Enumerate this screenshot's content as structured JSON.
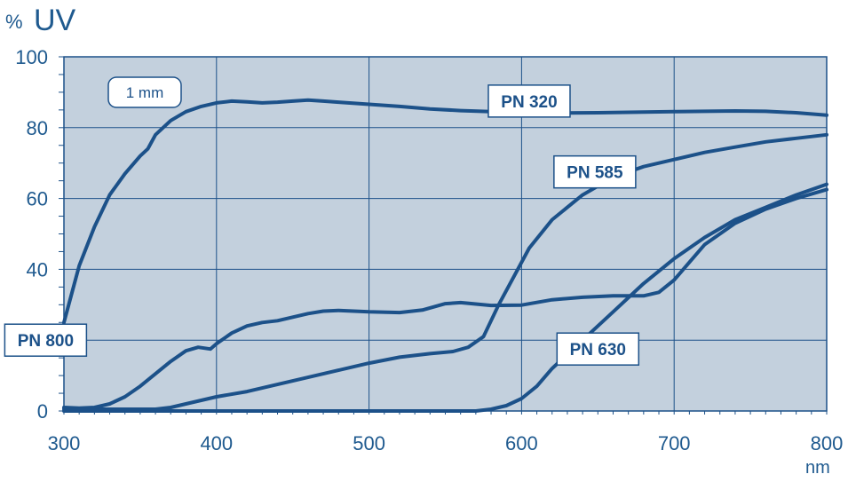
{
  "chart_data": {
    "type": "line",
    "ylabel_unit": "%",
    "ylabel": "UV",
    "xlabel": "nm",
    "xlim": [
      300,
      800
    ],
    "ylim": [
      0,
      100
    ],
    "x_ticks": [
      300,
      400,
      500,
      600,
      700,
      800
    ],
    "y_ticks": [
      0,
      20,
      40,
      60,
      80,
      100
    ],
    "grid": true,
    "annotation": "1 mm",
    "series": [
      {
        "name": "PN 320",
        "points": [
          [
            300,
            25
          ],
          [
            305,
            33
          ],
          [
            310,
            41
          ],
          [
            320,
            52
          ],
          [
            330,
            61
          ],
          [
            340,
            67
          ],
          [
            350,
            72
          ],
          [
            355,
            74
          ],
          [
            360,
            78
          ],
          [
            370,
            82
          ],
          [
            380,
            84.5
          ],
          [
            390,
            86
          ],
          [
            400,
            87
          ],
          [
            410,
            87.5
          ],
          [
            420,
            87.3
          ],
          [
            430,
            87
          ],
          [
            440,
            87.2
          ],
          [
            450,
            87.5
          ],
          [
            460,
            87.8
          ],
          [
            470,
            87.5
          ],
          [
            480,
            87.2
          ],
          [
            500,
            86.6
          ],
          [
            520,
            86
          ],
          [
            540,
            85.3
          ],
          [
            560,
            84.8
          ],
          [
            580,
            84.5
          ],
          [
            600,
            84.3
          ],
          [
            620,
            84.1
          ],
          [
            650,
            84.2
          ],
          [
            700,
            84.5
          ],
          [
            720,
            84.6
          ],
          [
            740,
            84.7
          ],
          [
            760,
            84.6
          ],
          [
            780,
            84.2
          ],
          [
            800,
            83.5
          ]
        ],
        "label_xy": [
          605,
          87.5
        ]
      },
      {
        "name": "PN 585",
        "points": [
          [
            300,
            0.5
          ],
          [
            350,
            0.5
          ],
          [
            360,
            0.5
          ],
          [
            370,
            1
          ],
          [
            380,
            2
          ],
          [
            400,
            4
          ],
          [
            420,
            5.5
          ],
          [
            440,
            7.5
          ],
          [
            460,
            9.5
          ],
          [
            480,
            11.5
          ],
          [
            500,
            13.5
          ],
          [
            520,
            15.2
          ],
          [
            540,
            16.2
          ],
          [
            555,
            16.8
          ],
          [
            565,
            18
          ],
          [
            575,
            21
          ],
          [
            585,
            30
          ],
          [
            595,
            38
          ],
          [
            605,
            46
          ],
          [
            620,
            54
          ],
          [
            640,
            61
          ],
          [
            660,
            66
          ],
          [
            680,
            69
          ],
          [
            700,
            71
          ],
          [
            720,
            73
          ],
          [
            740,
            74.5
          ],
          [
            760,
            76
          ],
          [
            780,
            77
          ],
          [
            800,
            78
          ]
        ],
        "label_xy": [
          648,
          67.5
        ]
      },
      {
        "name": "PN 800",
        "points": [
          [
            300,
            1
          ],
          [
            310,
            0.8
          ],
          [
            320,
            1
          ],
          [
            330,
            2
          ],
          [
            340,
            4
          ],
          [
            350,
            7
          ],
          [
            360,
            10.5
          ],
          [
            370,
            14
          ],
          [
            380,
            17
          ],
          [
            388,
            18
          ],
          [
            396,
            17.5
          ],
          [
            400,
            19
          ],
          [
            410,
            22
          ],
          [
            420,
            24
          ],
          [
            430,
            25
          ],
          [
            440,
            25.5
          ],
          [
            450,
            26.5
          ],
          [
            460,
            27.5
          ],
          [
            470,
            28.2
          ],
          [
            480,
            28.4
          ],
          [
            500,
            28
          ],
          [
            520,
            27.8
          ],
          [
            535,
            28.5
          ],
          [
            550,
            30.3
          ],
          [
            560,
            30.6
          ],
          [
            570,
            30.2
          ],
          [
            580,
            29.8
          ],
          [
            600,
            29.9
          ],
          [
            620,
            31.4
          ],
          [
            640,
            32.1
          ],
          [
            660,
            32.5
          ],
          [
            680,
            32.5
          ],
          [
            690,
            33.5
          ],
          [
            700,
            37
          ],
          [
            710,
            42
          ],
          [
            720,
            47
          ],
          [
            740,
            53
          ],
          [
            760,
            57
          ],
          [
            780,
            60
          ],
          [
            800,
            62.5
          ]
        ],
        "label_xy": [
          288,
          20
        ]
      },
      {
        "name": "PN 630",
        "points": [
          [
            300,
            0
          ],
          [
            550,
            0
          ],
          [
            570,
            0
          ],
          [
            580,
            0.5
          ],
          [
            590,
            1.5
          ],
          [
            600,
            3.5
          ],
          [
            610,
            7
          ],
          [
            620,
            12
          ],
          [
            640,
            20
          ],
          [
            660,
            28
          ],
          [
            680,
            36
          ],
          [
            700,
            43
          ],
          [
            720,
            49
          ],
          [
            740,
            54
          ],
          [
            760,
            57.5
          ],
          [
            780,
            61
          ],
          [
            800,
            64
          ]
        ],
        "label_xy": [
          650,
          17.5
        ]
      }
    ]
  },
  "colors": {
    "plot_bg": "#c3d0dd",
    "line": "#1c5189",
    "grid": "#1c5189",
    "text": "#1f5a8f"
  }
}
